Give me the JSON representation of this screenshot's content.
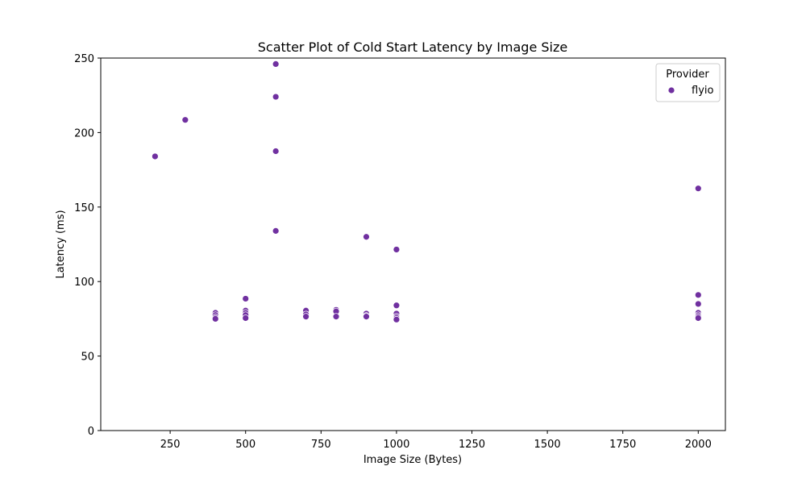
{
  "chart_data": {
    "type": "scatter",
    "title": "Scatter Plot of Cold Start Latency by Image Size",
    "xlabel": "Image Size (Bytes)",
    "ylabel": "Latency (ms)",
    "xlim": [
      20,
      2090
    ],
    "ylim": [
      0,
      250
    ],
    "xticks": [
      250,
      500,
      750,
      1000,
      1250,
      1500,
      1750,
      2000
    ],
    "yticks": [
      0,
      50,
      100,
      150,
      200,
      250
    ],
    "grid": false,
    "legend": {
      "title": "Provider",
      "placement": "top-right"
    },
    "series": [
      {
        "name": "flyio",
        "color": "#7030a0",
        "points": [
          {
            "x": 200,
            "y": 184
          },
          {
            "x": 300,
            "y": 208.5
          },
          {
            "x": 400,
            "y": 79
          },
          {
            "x": 400,
            "y": 77.5
          },
          {
            "x": 400,
            "y": 76
          },
          {
            "x": 400,
            "y": 75
          },
          {
            "x": 500,
            "y": 88.5
          },
          {
            "x": 500,
            "y": 80.5
          },
          {
            "x": 500,
            "y": 79
          },
          {
            "x": 500,
            "y": 77.5
          },
          {
            "x": 500,
            "y": 75.5
          },
          {
            "x": 600,
            "y": 246
          },
          {
            "x": 600,
            "y": 224
          },
          {
            "x": 600,
            "y": 187.5
          },
          {
            "x": 600,
            "y": 134
          },
          {
            "x": 700,
            "y": 80.5
          },
          {
            "x": 700,
            "y": 78
          },
          {
            "x": 700,
            "y": 76.5
          },
          {
            "x": 800,
            "y": 81
          },
          {
            "x": 800,
            "y": 80
          },
          {
            "x": 800,
            "y": 76.5
          },
          {
            "x": 900,
            "y": 130
          },
          {
            "x": 900,
            "y": 78.5
          },
          {
            "x": 900,
            "y": 77
          },
          {
            "x": 900,
            "y": 76.5
          },
          {
            "x": 1000,
            "y": 121.5
          },
          {
            "x": 1000,
            "y": 84
          },
          {
            "x": 1000,
            "y": 78.5
          },
          {
            "x": 1000,
            "y": 76.5
          },
          {
            "x": 1000,
            "y": 75.5
          },
          {
            "x": 1000,
            "y": 74.5
          },
          {
            "x": 2000,
            "y": 162.5
          },
          {
            "x": 2000,
            "y": 91
          },
          {
            "x": 2000,
            "y": 85
          },
          {
            "x": 2000,
            "y": 79
          },
          {
            "x": 2000,
            "y": 77.5
          },
          {
            "x": 2000,
            "y": 76.5
          },
          {
            "x": 2000,
            "y": 75.5
          }
        ]
      }
    ]
  }
}
